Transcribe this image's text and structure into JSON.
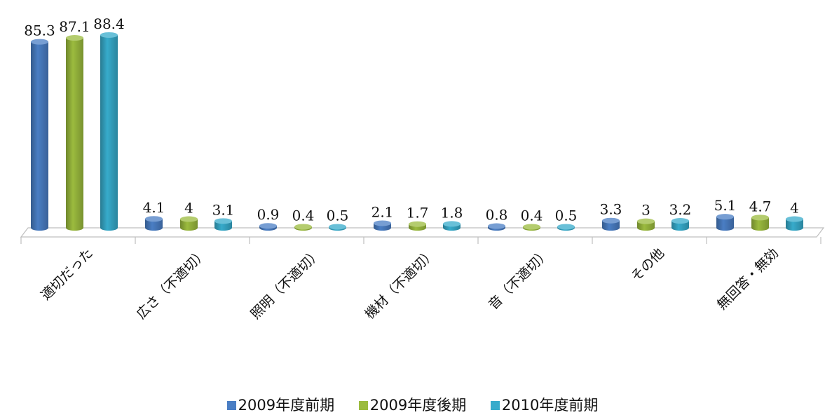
{
  "chart_data": {
    "type": "bar",
    "style": "3d-cylinder",
    "categories": [
      "適切だった",
      "広さ（不適切）",
      "照明（不適切）",
      "機材（不適切）",
      "音（不適切）",
      "その他",
      "無回答・無効"
    ],
    "series": [
      {
        "name": "2009年度前期",
        "color": "#4A7EC4",
        "values": [
          85.3,
          4.1,
          0.9,
          2.1,
          0.8,
          3.3,
          5.1
        ]
      },
      {
        "name": "2009年度後期",
        "color": "#9BBB3E",
        "values": [
          87.1,
          4,
          0.4,
          1.7,
          0.4,
          3,
          4.7
        ]
      },
      {
        "name": "2010年度前期",
        "color": "#37ABCB",
        "values": [
          88.4,
          3.1,
          0.5,
          1.8,
          0.5,
          3.2,
          4
        ]
      }
    ],
    "data_labels": [
      [
        "85.3",
        "87.1",
        "88.4"
      ],
      [
        "4.1",
        "4",
        "3.1"
      ],
      [
        "0.9",
        "0.4",
        "0.5"
      ],
      [
        "2.1",
        "1.7",
        "1.8"
      ],
      [
        "0.8",
        "0.4",
        "0.5"
      ],
      [
        "3.3",
        "3",
        "3.2"
      ],
      [
        "5.1",
        "4.7",
        "4"
      ]
    ],
    "ylim": [
      0,
      90
    ],
    "legend_position": "bottom",
    "grid": false
  }
}
